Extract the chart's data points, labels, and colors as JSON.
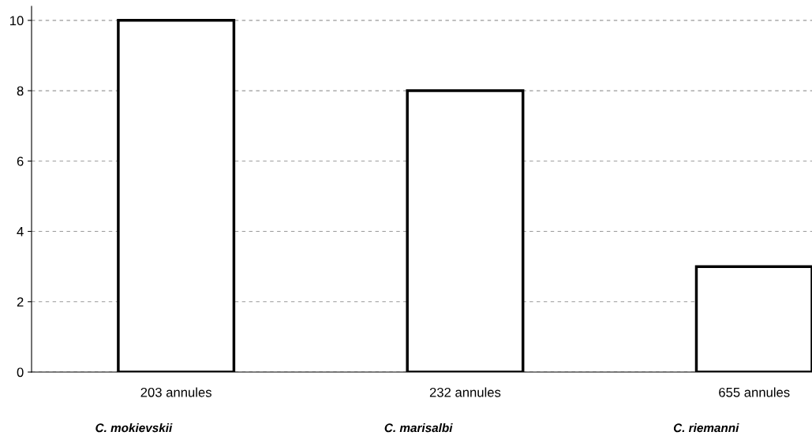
{
  "chart_data": {
    "type": "bar",
    "categories": [
      "203 annules",
      "232 annules",
      "655 annules"
    ],
    "values": [
      10,
      8,
      3
    ],
    "color": "#ffffff",
    "ylim": [
      0,
      10.4
    ],
    "yticks": [
      0,
      2,
      4,
      6,
      8,
      10
    ],
    "grid": "y",
    "annotations": [
      "C. mokievskii",
      "C. marisalbi",
      "C. riemanni"
    ]
  }
}
